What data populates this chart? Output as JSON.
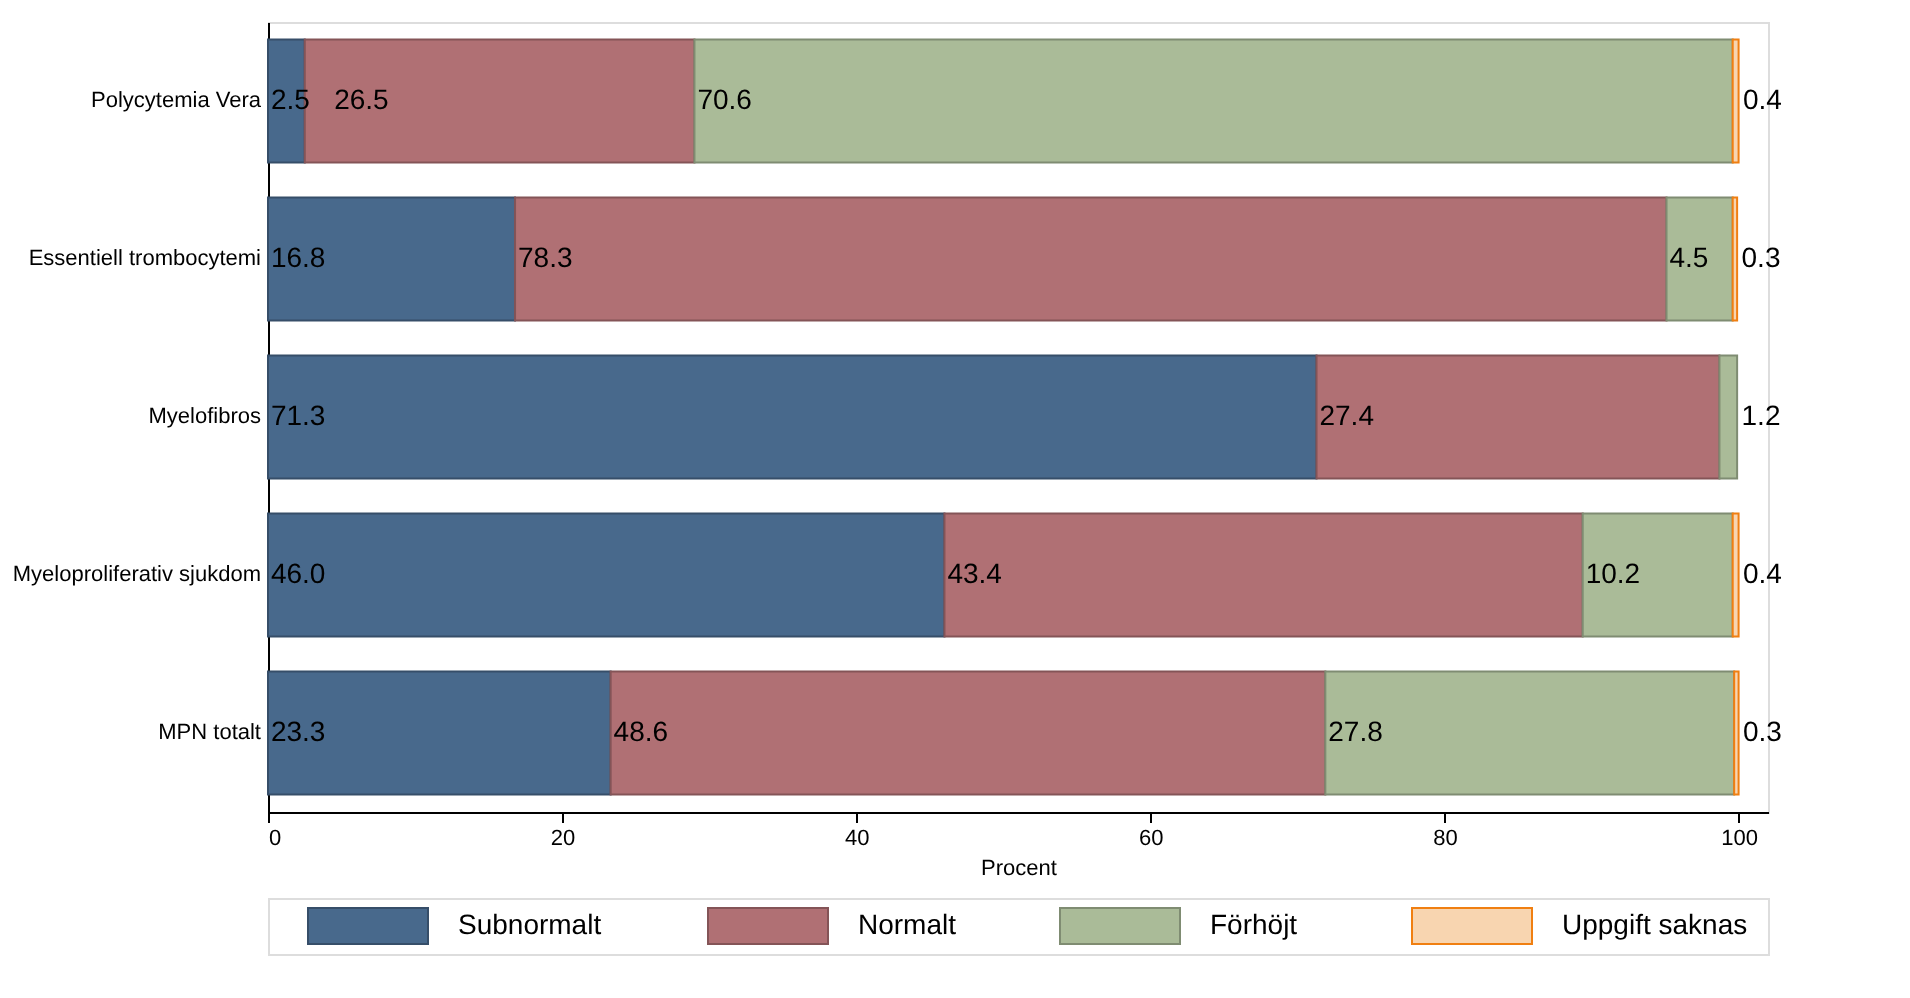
{
  "chart_data": {
    "type": "bar",
    "orientation": "horizontal",
    "stacked": true,
    "xlabel": "Procent",
    "categories": [
      "Polycytemia Vera",
      "Essentiell trombocytemi",
      "Myelofibros",
      "Myeloproliferativ sjukdom",
      "MPN totalt"
    ],
    "series": [
      {
        "name": "Subnormalt",
        "color": "#48698c",
        "values": [
          2.5,
          16.8,
          71.3,
          46.0,
          23.3
        ],
        "value_labels": [
          "2.5",
          "16.8",
          "71.3",
          "46.0",
          "23.3"
        ]
      },
      {
        "name": "Normalt",
        "color": "#b07074",
        "values": [
          26.5,
          78.3,
          27.4,
          43.4,
          48.6
        ],
        "value_labels": [
          "26.5",
          "78.3",
          "27.4",
          "43.4",
          "48.6"
        ]
      },
      {
        "name": "Förhöjt",
        "color": "#aabb98",
        "values": [
          70.6,
          4.5,
          1.2,
          10.2,
          27.8
        ],
        "value_labels": [
          "70.6",
          "4.5",
          "1.2",
          "10.2",
          "27.8"
        ]
      },
      {
        "name": "Uppgift saknas",
        "color": "#f8d5b0",
        "values": [
          0.4,
          0.3,
          null,
          0.4,
          0.3
        ],
        "value_labels": [
          "0.4",
          "0.3",
          null,
          "0.4",
          "0.3"
        ]
      }
    ],
    "xlim": [
      0,
      102
    ],
    "xticks": [
      0,
      20,
      40,
      60,
      80,
      100
    ],
    "grid": false,
    "legend": "bottom"
  }
}
